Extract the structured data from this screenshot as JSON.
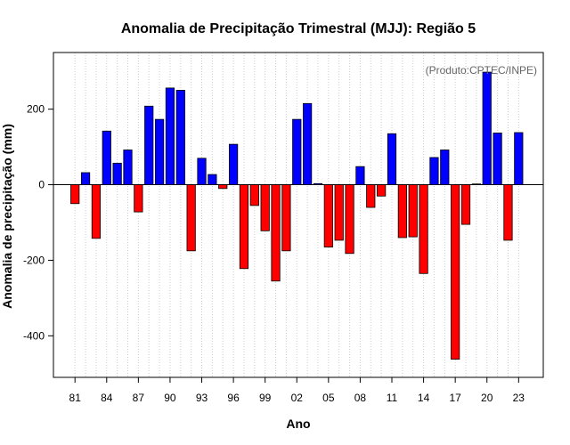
{
  "chart_data": {
    "type": "bar",
    "title": "Anomalia de Precipitação Trimestral (MJJ): Região 5",
    "xlabel": "Ano",
    "ylabel": "Anomalia de precipitação (mm)",
    "annotation": "(Produto:CPTEC/INPE)",
    "ylim": [
      -510,
      350
    ],
    "yticks": [
      -400,
      -200,
      0,
      200
    ],
    "ytick_labels": [
      "-400",
      "-200",
      "0",
      "200"
    ],
    "grid": "vertical dotted",
    "colors": {
      "positive": "#0000ff",
      "negative": "#ff0000",
      "axis": "#000000",
      "grid": "#cccccc"
    },
    "x": [
      1981,
      1982,
      1983,
      1984,
      1985,
      1986,
      1987,
      1988,
      1989,
      1990,
      1991,
      1992,
      1993,
      1994,
      1995,
      1996,
      1997,
      1998,
      1999,
      2000,
      2001,
      2002,
      2003,
      2004,
      2005,
      2006,
      2007,
      2008,
      2009,
      2010,
      2011,
      2012,
      2013,
      2014,
      2015,
      2016,
      2017,
      2018,
      2019,
      2020,
      2021,
      2022,
      2023
    ],
    "values": [
      -50,
      32,
      -142,
      142,
      57,
      92,
      -72,
      208,
      173,
      256,
      250,
      -175,
      70,
      27,
      -10,
      107,
      -222,
      -55,
      -122,
      -255,
      -175,
      173,
      215,
      3,
      -165,
      -147,
      -182,
      48,
      -60,
      -30,
      135,
      -140,
      -138,
      -235,
      72,
      92,
      -462,
      -105,
      2,
      298,
      137,
      -147,
      138
    ],
    "xtick_years": [
      1981,
      1984,
      1987,
      1990,
      1993,
      1996,
      1999,
      2002,
      2005,
      2008,
      2011,
      2014,
      2017,
      2020,
      2023
    ],
    "xtick_labels": [
      "81",
      "84",
      "87",
      "90",
      "93",
      "96",
      "99",
      "02",
      "05",
      "08",
      "11",
      "14",
      "17",
      "20",
      "23"
    ]
  }
}
